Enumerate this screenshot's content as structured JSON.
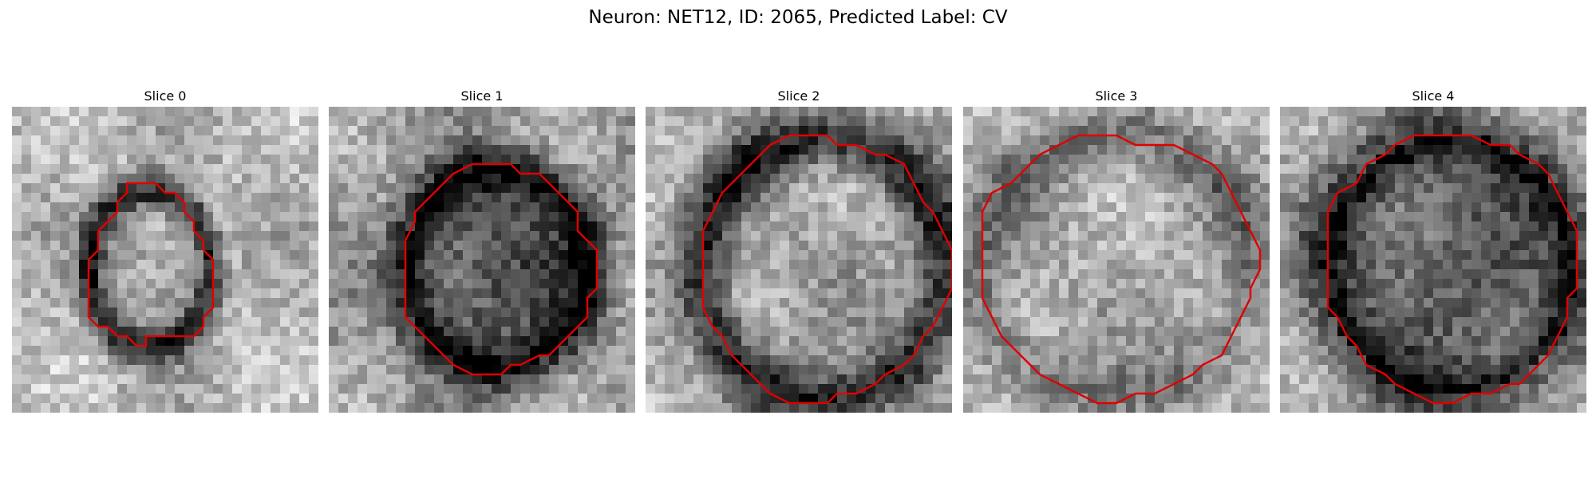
{
  "figure": {
    "title": "Neuron: NET12, ID: 2065, Predicted Label: CV"
  },
  "contour_color": "#e00000",
  "slices": [
    {
      "label": "Slice 0"
    },
    {
      "label": "Slice 1"
    },
    {
      "label": "Slice 2"
    },
    {
      "label": "Slice 3"
    },
    {
      "label": "Slice 4"
    }
  ]
}
